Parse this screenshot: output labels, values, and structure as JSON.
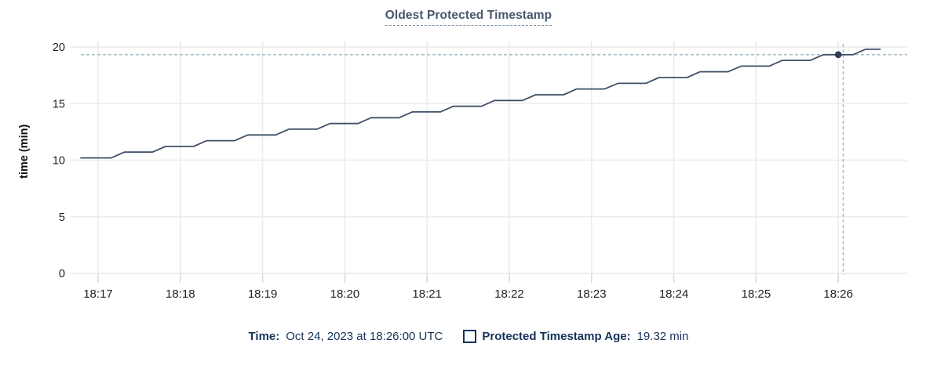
{
  "title": "Oldest Protected Timestamp",
  "colors": {
    "title_text": "#47586e",
    "title_underline": "#7e95a9",
    "series_line": "#3f4f66",
    "highlight_point": "#2e3e57",
    "gridline": "#ececec",
    "tick_mark": "#dcdcdc",
    "tick_text": "#1f1f1f",
    "crosshair": "#9fb4c2",
    "legend_text": "#16345a"
  },
  "legend": {
    "time_label": "Time:",
    "time_value": "Oct 24, 2023 at 18:26:00 UTC",
    "series_label": "Protected Timestamp Age:",
    "series_value": "19.32 min"
  },
  "chart_data": {
    "type": "line",
    "title": "Oldest Protected Timestamp",
    "xlabel": "",
    "ylabel": "time (min)",
    "ylim": [
      0,
      20
    ],
    "y_ticks": [
      0,
      5,
      10,
      15,
      20
    ],
    "x_tick_labels": [
      "18:17",
      "18:18",
      "18:19",
      "18:20",
      "18:21",
      "18:22",
      "18:23",
      "18:24",
      "18:25",
      "18:26"
    ],
    "x_tick_minutes": [
      0,
      1,
      2,
      3,
      4,
      5,
      6,
      7,
      8,
      9
    ],
    "grid": true,
    "legend_position": "bottom",
    "series": [
      {
        "name": "Protected Timestamp Age",
        "unit": "min",
        "points": [
          [
            -0.21,
            10.2
          ],
          [
            0.16,
            10.2
          ],
          [
            0.32,
            10.71
          ],
          [
            0.66,
            10.71
          ],
          [
            0.82,
            11.21
          ],
          [
            1.16,
            11.21
          ],
          [
            1.32,
            11.72
          ],
          [
            1.66,
            11.72
          ],
          [
            1.82,
            12.23
          ],
          [
            2.16,
            12.23
          ],
          [
            2.32,
            12.74
          ],
          [
            2.66,
            12.74
          ],
          [
            2.82,
            13.24
          ],
          [
            3.16,
            13.24
          ],
          [
            3.32,
            13.75
          ],
          [
            3.66,
            13.75
          ],
          [
            3.82,
            14.26
          ],
          [
            4.16,
            14.26
          ],
          [
            4.32,
            14.76
          ],
          [
            4.66,
            14.76
          ],
          [
            4.82,
            15.27
          ],
          [
            5.16,
            15.27
          ],
          [
            5.32,
            15.78
          ],
          [
            5.66,
            15.78
          ],
          [
            5.82,
            16.29
          ],
          [
            6.16,
            16.29
          ],
          [
            6.32,
            16.79
          ],
          [
            6.66,
            16.79
          ],
          [
            6.82,
            17.3
          ],
          [
            7.16,
            17.3
          ],
          [
            7.32,
            17.81
          ],
          [
            7.66,
            17.81
          ],
          [
            7.82,
            18.31
          ],
          [
            8.16,
            18.31
          ],
          [
            8.32,
            18.82
          ],
          [
            8.66,
            18.82
          ],
          [
            8.82,
            19.32
          ],
          [
            9.18,
            19.32
          ],
          [
            9.33,
            19.8
          ],
          [
            9.51,
            19.8
          ]
        ]
      }
    ],
    "highlight": {
      "t_minutes": 9.0,
      "x_label": "18:26",
      "time_text": "Oct 24, 2023 at 18:26:00 UTC",
      "value": 19.32,
      "value_text": "19.32 min"
    },
    "crosshair": {
      "t_minutes": 9.06,
      "value": 19.32
    }
  }
}
